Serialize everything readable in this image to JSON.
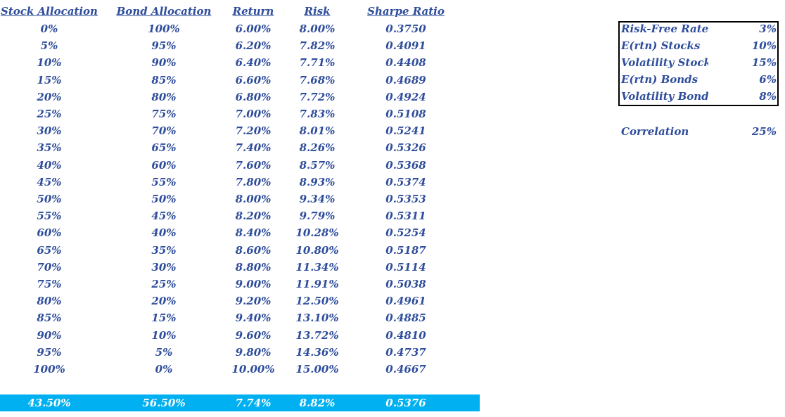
{
  "table": {
    "headers": [
      "Stock Allocation",
      "Bond Allocation",
      "Return",
      "Risk",
      "Sharpe Ratio"
    ],
    "rows": [
      [
        "0%",
        "100%",
        "6.00%",
        "8.00%",
        "0.3750"
      ],
      [
        "5%",
        "95%",
        "6.20%",
        "7.82%",
        "0.4091"
      ],
      [
        "10%",
        "90%",
        "6.40%",
        "7.71%",
        "0.4408"
      ],
      [
        "15%",
        "85%",
        "6.60%",
        "7.68%",
        "0.4689"
      ],
      [
        "20%",
        "80%",
        "6.80%",
        "7.72%",
        "0.4924"
      ],
      [
        "25%",
        "75%",
        "7.00%",
        "7.83%",
        "0.5108"
      ],
      [
        "30%",
        "70%",
        "7.20%",
        "8.01%",
        "0.5241"
      ],
      [
        "35%",
        "65%",
        "7.40%",
        "8.26%",
        "0.5326"
      ],
      [
        "40%",
        "60%",
        "7.60%",
        "8.57%",
        "0.5368"
      ],
      [
        "45%",
        "55%",
        "7.80%",
        "8.93%",
        "0.5374"
      ],
      [
        "50%",
        "50%",
        "8.00%",
        "9.34%",
        "0.5353"
      ],
      [
        "55%",
        "45%",
        "8.20%",
        "9.79%",
        "0.5311"
      ],
      [
        "60%",
        "40%",
        "8.40%",
        "10.28%",
        "0.5254"
      ],
      [
        "65%",
        "35%",
        "8.60%",
        "10.80%",
        "0.5187"
      ],
      [
        "70%",
        "30%",
        "8.80%",
        "11.34%",
        "0.5114"
      ],
      [
        "75%",
        "25%",
        "9.00%",
        "11.91%",
        "0.5038"
      ],
      [
        "80%",
        "20%",
        "9.20%",
        "12.50%",
        "0.4961"
      ],
      [
        "85%",
        "15%",
        "9.40%",
        "13.10%",
        "0.4885"
      ],
      [
        "90%",
        "10%",
        "9.60%",
        "13.72%",
        "0.4810"
      ],
      [
        "95%",
        "5%",
        "9.80%",
        "14.36%",
        "0.4737"
      ],
      [
        "100%",
        "0%",
        "10.00%",
        "15.00%",
        "0.4667"
      ]
    ],
    "optimal": [
      "43.50%",
      "56.50%",
      "7.74%",
      "8.82%",
      "0.5376"
    ]
  },
  "parameters": [
    [
      "Risk-Free Rate",
      "3%"
    ],
    [
      "E(rtn) Stocks",
      "10%"
    ],
    [
      "Volatility Stocks",
      "15%"
    ],
    [
      "E(rtn) Bonds",
      "6%"
    ],
    [
      "Volatility Bonds",
      "8%"
    ]
  ],
  "correlation": [
    "Correlation",
    "25%"
  ]
}
